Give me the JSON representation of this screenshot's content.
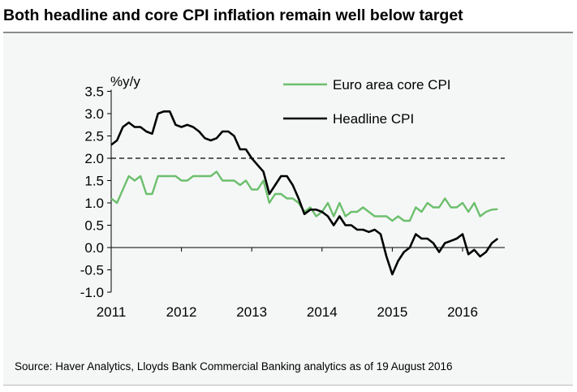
{
  "title": "Both headline and core CPI inflation remain well below target",
  "source": "Source: Haver Analytics, Lloyds Bank Commercial Banking analytics as of 19 August 2016",
  "chart_data": {
    "type": "line",
    "ylabel": "%y/y",
    "ylim": [
      -1.0,
      3.5
    ],
    "yticks": [
      "3.5",
      "3.0",
      "2.5",
      "2.0",
      "1.5",
      "1.0",
      "0.5",
      "0.0",
      "-0.5",
      "-1.0"
    ],
    "xticks": [
      "2011",
      "2012",
      "2013",
      "2014",
      "2015",
      "2016"
    ],
    "x_start": "2011-01",
    "x_end": "2016-07",
    "frequency": "monthly",
    "target_line": 2.0,
    "legend_position": "top-right",
    "grid": false,
    "series": [
      {
        "name": "Euro area core CPI",
        "color": "#6dbf6d",
        "values": [
          1.1,
          1.0,
          1.3,
          1.6,
          1.5,
          1.6,
          1.2,
          1.2,
          1.6,
          1.6,
          1.6,
          1.6,
          1.5,
          1.5,
          1.6,
          1.6,
          1.6,
          1.6,
          1.7,
          1.5,
          1.5,
          1.5,
          1.4,
          1.5,
          1.3,
          1.3,
          1.5,
          1.0,
          1.2,
          1.2,
          1.1,
          1.1,
          1.0,
          0.8,
          0.9,
          0.7,
          0.8,
          1.0,
          0.7,
          1.0,
          0.7,
          0.8,
          0.8,
          0.9,
          0.8,
          0.7,
          0.7,
          0.7,
          0.6,
          0.7,
          0.6,
          0.6,
          0.9,
          0.8,
          1.0,
          0.9,
          0.9,
          1.1,
          0.9,
          0.9,
          1.0,
          0.8,
          1.0,
          0.7,
          0.8,
          0.85,
          0.86
        ]
      },
      {
        "name": "Headline CPI",
        "color": "#000000",
        "values": [
          2.3,
          2.4,
          2.7,
          2.8,
          2.7,
          2.7,
          2.6,
          2.55,
          3.0,
          3.05,
          3.05,
          2.75,
          2.7,
          2.75,
          2.7,
          2.6,
          2.45,
          2.4,
          2.45,
          2.6,
          2.6,
          2.5,
          2.2,
          2.2,
          2.0,
          1.85,
          1.7,
          1.2,
          1.4,
          1.6,
          1.6,
          1.4,
          1.1,
          0.75,
          0.85,
          0.85,
          0.8,
          0.7,
          0.5,
          0.7,
          0.5,
          0.5,
          0.4,
          0.4,
          0.35,
          0.4,
          0.3,
          -0.2,
          -0.6,
          -0.3,
          -0.1,
          0.0,
          0.3,
          0.2,
          0.2,
          0.1,
          -0.1,
          0.1,
          0.15,
          0.2,
          0.3,
          -0.15,
          -0.05,
          -0.2,
          -0.1,
          0.1,
          0.2
        ]
      }
    ]
  }
}
